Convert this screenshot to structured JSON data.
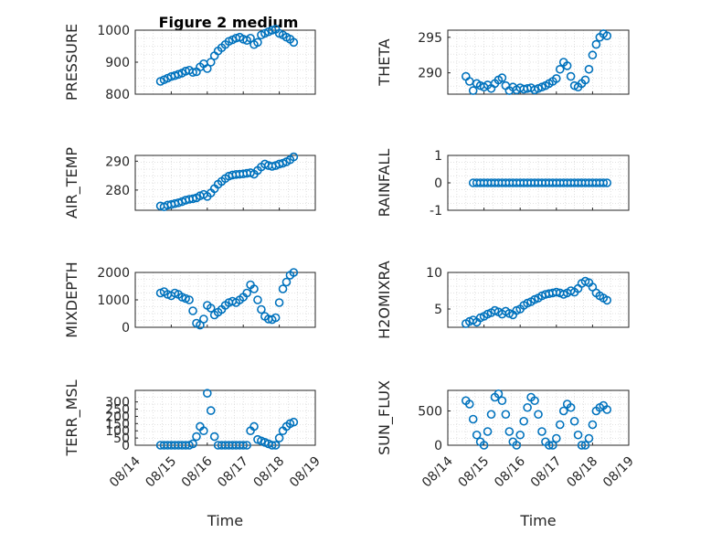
{
  "figure": {
    "title": "Figure 2 medium",
    "marker_color": "#0072BD",
    "axis_color": "#262626",
    "grid": "dotted minor",
    "x_tick_labels": [
      "08/14",
      "08/15",
      "08/16",
      "08/17",
      "08/18",
      "08/19"
    ]
  },
  "chart_data": [
    {
      "type": "scatter",
      "name": "pressure",
      "ylabel": "PRESSURE",
      "xlabel": "",
      "title": "Figure 2 medium",
      "xlim": [
        0,
        5
      ],
      "ylim": [
        800,
        1000
      ],
      "ytick_labels": [
        "800",
        "900",
        "1000"
      ],
      "x": [
        0.7,
        0.8,
        0.9,
        1.0,
        1.1,
        1.2,
        1.3,
        1.4,
        1.5,
        1.6,
        1.7,
        1.8,
        1.9,
        2.0,
        2.1,
        2.2,
        2.3,
        2.4,
        2.5,
        2.6,
        2.7,
        2.8,
        2.9,
        3.0,
        3.1,
        3.2,
        3.3,
        3.4,
        3.5,
        3.6,
        3.7,
        3.8,
        3.9,
        4.0,
        4.1,
        4.2,
        4.3,
        4.4
      ],
      "y": [
        840,
        845,
        850,
        855,
        858,
        862,
        866,
        872,
        875,
        868,
        870,
        885,
        895,
        880,
        900,
        920,
        935,
        945,
        955,
        965,
        970,
        975,
        978,
        972,
        968,
        975,
        955,
        962,
        985,
        990,
        995,
        1000,
        1003,
        990,
        985,
        978,
        972,
        962
      ]
    },
    {
      "type": "scatter",
      "name": "theta",
      "ylabel": "THETA",
      "xlabel": "",
      "xlim": [
        0,
        5
      ],
      "ylim": [
        287,
        296
      ],
      "ytick_labels": [
        "290",
        "295"
      ],
      "x": [
        0.5,
        0.6,
        0.7,
        0.8,
        0.9,
        1.0,
        1.1,
        1.2,
        1.3,
        1.4,
        1.5,
        1.6,
        1.7,
        1.8,
        1.9,
        2.0,
        2.1,
        2.2,
        2.3,
        2.4,
        2.5,
        2.6,
        2.7,
        2.8,
        2.9,
        3.0,
        3.1,
        3.2,
        3.3,
        3.4,
        3.5,
        3.6,
        3.7,
        3.8,
        3.9,
        4.0,
        4.1,
        4.2,
        4.3,
        4.4
      ],
      "y": [
        289.5,
        288.8,
        287.5,
        288.5,
        288.2,
        288.0,
        288.3,
        287.8,
        288.5,
        289.0,
        289.3,
        288.2,
        287.5,
        288.0,
        287.6,
        287.9,
        287.7,
        287.8,
        287.9,
        287.6,
        287.8,
        288.0,
        288.2,
        288.5,
        288.8,
        289.2,
        290.5,
        291.5,
        291.0,
        289.5,
        288.2,
        288.0,
        288.5,
        289.0,
        290.5,
        292.5,
        294.0,
        295.0,
        295.5,
        295.2
      ]
    },
    {
      "type": "scatter",
      "name": "air_temp",
      "ylabel": "AIR_TEMP",
      "xlabel": "",
      "xlim": [
        0,
        5
      ],
      "ylim": [
        273,
        292
      ],
      "ytick_labels": [
        "280",
        "290"
      ],
      "x": [
        0.7,
        0.8,
        0.9,
        1.0,
        1.1,
        1.2,
        1.3,
        1.4,
        1.5,
        1.6,
        1.7,
        1.8,
        1.9,
        2.0,
        2.1,
        2.2,
        2.3,
        2.4,
        2.5,
        2.6,
        2.7,
        2.8,
        2.9,
        3.0,
        3.1,
        3.2,
        3.3,
        3.4,
        3.5,
        3.6,
        3.7,
        3.8,
        3.9,
        4.0,
        4.1,
        4.2,
        4.3,
        4.4
      ],
      "y": [
        274.5,
        274.2,
        274.8,
        275.0,
        275.3,
        275.6,
        276.0,
        276.5,
        276.8,
        277.0,
        277.3,
        278.0,
        278.5,
        277.8,
        279.0,
        280.5,
        282.0,
        283.0,
        284.0,
        284.8,
        285.2,
        285.4,
        285.5,
        285.6,
        285.8,
        286.0,
        285.5,
        286.8,
        288.0,
        289.0,
        288.5,
        288.2,
        288.5,
        289.0,
        289.3,
        289.8,
        290.5,
        291.5
      ]
    },
    {
      "type": "scatter",
      "name": "rainfall",
      "ylabel": "RAINFALL",
      "xlabel": "",
      "xlim": [
        0,
        5
      ],
      "ylim": [
        -1,
        1
      ],
      "ytick_labels": [
        "-1",
        "0",
        "1"
      ],
      "x": [
        0.7,
        0.8,
        0.9,
        1.0,
        1.1,
        1.2,
        1.3,
        1.4,
        1.5,
        1.6,
        1.7,
        1.8,
        1.9,
        2.0,
        2.1,
        2.2,
        2.3,
        2.4,
        2.5,
        2.6,
        2.7,
        2.8,
        2.9,
        3.0,
        3.1,
        3.2,
        3.3,
        3.4,
        3.5,
        3.6,
        3.7,
        3.8,
        3.9,
        4.0,
        4.1,
        4.2,
        4.3,
        4.4
      ],
      "y": [
        0,
        0,
        0,
        0,
        0,
        0,
        0,
        0,
        0,
        0,
        0,
        0,
        0,
        0,
        0,
        0,
        0,
        0,
        0,
        0,
        0,
        0,
        0,
        0,
        0,
        0,
        0,
        0,
        0,
        0,
        0,
        0,
        0,
        0,
        0,
        0,
        0,
        0
      ]
    },
    {
      "type": "scatter",
      "name": "mixdepth",
      "ylabel": "MIXDEPTH",
      "xlabel": "",
      "xlim": [
        0,
        5
      ],
      "ylim": [
        0,
        2000
      ],
      "ytick_labels": [
        "0",
        "1000",
        "2000"
      ],
      "x": [
        0.7,
        0.8,
        0.9,
        1.0,
        1.1,
        1.2,
        1.3,
        1.4,
        1.5,
        1.6,
        1.7,
        1.8,
        1.9,
        2.0,
        2.1,
        2.2,
        2.3,
        2.4,
        2.5,
        2.6,
        2.7,
        2.8,
        2.9,
        3.0,
        3.1,
        3.2,
        3.3,
        3.4,
        3.5,
        3.6,
        3.7,
        3.8,
        3.9,
        4.0,
        4.1,
        4.2,
        4.3,
        4.4
      ],
      "y": [
        1250,
        1300,
        1200,
        1150,
        1250,
        1200,
        1100,
        1050,
        1000,
        600,
        150,
        80,
        300,
        800,
        700,
        450,
        550,
        650,
        800,
        900,
        950,
        900,
        1000,
        1100,
        1250,
        1550,
        1400,
        1000,
        650,
        400,
        300,
        280,
        350,
        900,
        1400,
        1650,
        1900,
        2000
      ]
    },
    {
      "type": "scatter",
      "name": "h2omixra",
      "ylabel": "H2OMIXRA",
      "xlabel": "",
      "xlim": [
        0,
        5
      ],
      "ylim": [
        2.5,
        10
      ],
      "ytick_labels": [
        "5",
        "10"
      ],
      "x": [
        0.5,
        0.6,
        0.7,
        0.8,
        0.9,
        1.0,
        1.1,
        1.2,
        1.3,
        1.4,
        1.5,
        1.6,
        1.7,
        1.8,
        1.9,
        2.0,
        2.1,
        2.2,
        2.3,
        2.4,
        2.5,
        2.6,
        2.7,
        2.8,
        2.9,
        3.0,
        3.1,
        3.2,
        3.3,
        3.4,
        3.5,
        3.6,
        3.7,
        3.8,
        3.9,
        4.0,
        4.1,
        4.2,
        4.3,
        4.4
      ],
      "y": [
        3.0,
        3.3,
        3.5,
        3.2,
        3.8,
        4.0,
        4.3,
        4.5,
        4.8,
        4.6,
        4.3,
        4.7,
        4.4,
        4.2,
        4.8,
        5.0,
        5.5,
        5.8,
        6.0,
        6.3,
        6.5,
        6.8,
        7.0,
        7.1,
        7.2,
        7.3,
        7.2,
        7.0,
        7.2,
        7.5,
        7.3,
        7.8,
        8.5,
        8.8,
        8.6,
        8.0,
        7.2,
        6.8,
        6.5,
        6.2
      ]
    },
    {
      "type": "scatter",
      "name": "terr_msl",
      "ylabel": "TERR_MSL",
      "xlabel": "Time",
      "xlim": [
        0,
        5
      ],
      "ylim": [
        0,
        380
      ],
      "ytick_labels": [
        "0",
        "50",
        "100",
        "150",
        "200",
        "250",
        "300"
      ],
      "x": [
        0.7,
        0.8,
        0.9,
        1.0,
        1.1,
        1.2,
        1.3,
        1.4,
        1.5,
        1.6,
        1.7,
        1.8,
        1.9,
        2.0,
        2.1,
        2.2,
        2.3,
        2.4,
        2.5,
        2.6,
        2.7,
        2.8,
        2.9,
        3.0,
        3.1,
        3.2,
        3.3,
        3.4,
        3.5,
        3.6,
        3.7,
        3.8,
        3.9,
        4.0,
        4.1,
        4.2,
        4.3,
        4.4
      ],
      "y": [
        0,
        0,
        0,
        0,
        0,
        0,
        0,
        0,
        0,
        10,
        60,
        130,
        100,
        360,
        240,
        60,
        0,
        0,
        0,
        0,
        0,
        0,
        0,
        0,
        0,
        100,
        130,
        40,
        30,
        20,
        10,
        0,
        0,
        50,
        100,
        130,
        150,
        160
      ]
    },
    {
      "type": "scatter",
      "name": "sun_flux",
      "ylabel": "SUN_FLUX",
      "xlabel": "Time",
      "xlim": [
        0,
        5
      ],
      "ylim": [
        0,
        800
      ],
      "ytick_labels": [
        "0",
        "500"
      ],
      "x": [
        0.5,
        0.6,
        0.7,
        0.8,
        0.9,
        1.0,
        1.1,
        1.2,
        1.3,
        1.4,
        1.5,
        1.6,
        1.7,
        1.8,
        1.9,
        2.0,
        2.1,
        2.2,
        2.3,
        2.4,
        2.5,
        2.6,
        2.7,
        2.8,
        2.9,
        3.0,
        3.1,
        3.2,
        3.3,
        3.4,
        3.5,
        3.6,
        3.7,
        3.8,
        3.9,
        4.0,
        4.1,
        4.2,
        4.3,
        4.4
      ],
      "y": [
        650,
        600,
        380,
        150,
        50,
        0,
        200,
        450,
        700,
        750,
        650,
        450,
        200,
        50,
        0,
        150,
        350,
        550,
        700,
        650,
        450,
        200,
        50,
        0,
        0,
        100,
        300,
        500,
        600,
        550,
        350,
        150,
        0,
        0,
        100,
        300,
        500,
        550,
        580,
        520
      ]
    }
  ]
}
